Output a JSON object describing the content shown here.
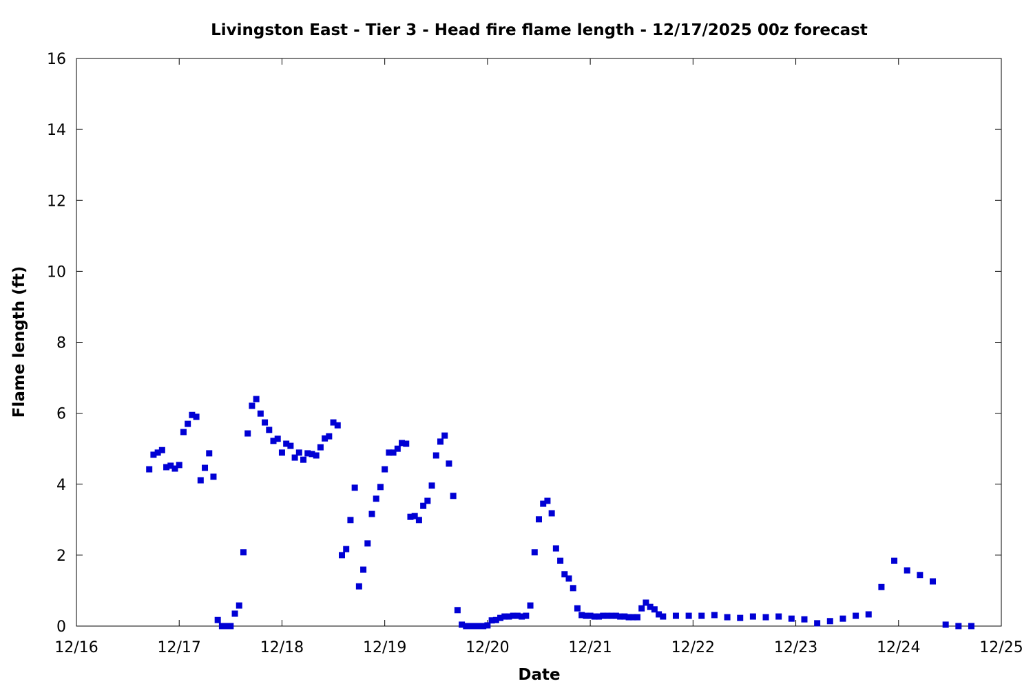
{
  "chart_data": {
    "type": "scatter",
    "title": "Livingston East - Tier 3 - Head fire flame length - 12/17/2025 00z forecast",
    "xlabel": "Date",
    "ylabel": "Flame length (ft)",
    "x_units": "hours since 12/16 00z",
    "xlim": [
      0,
      216
    ],
    "ylim": [
      0,
      16
    ],
    "xticks": [
      {
        "value": 0,
        "label": "12/16"
      },
      {
        "value": 24,
        "label": "12/17"
      },
      {
        "value": 48,
        "label": "12/18"
      },
      {
        "value": 72,
        "label": "12/19"
      },
      {
        "value": 96,
        "label": "12/20"
      },
      {
        "value": 120,
        "label": "12/21"
      },
      {
        "value": 144,
        "label": "12/22"
      },
      {
        "value": 168,
        "label": "12/23"
      },
      {
        "value": 192,
        "label": "12/24"
      },
      {
        "value": 216,
        "label": "12/25"
      }
    ],
    "yticks": [
      {
        "value": 0,
        "label": "0"
      },
      {
        "value": 2,
        "label": "2"
      },
      {
        "value": 4,
        "label": "4"
      },
      {
        "value": 6,
        "label": "6"
      },
      {
        "value": 8,
        "label": "8"
      },
      {
        "value": 10,
        "label": "10"
      },
      {
        "value": 12,
        "label": "12"
      },
      {
        "value": 14,
        "label": "14"
      },
      {
        "value": 16,
        "label": "16"
      }
    ],
    "grid": false,
    "color": "#0000d4",
    "series": [
      {
        "name": "Head fire flame length",
        "x": [
          17,
          18,
          19,
          20,
          21,
          22,
          23,
          24,
          25,
          26,
          27,
          28,
          29,
          30,
          31,
          32,
          33,
          34,
          35,
          36,
          37,
          38,
          39,
          40,
          41,
          42,
          43,
          44,
          45,
          46,
          47,
          48,
          49,
          50,
          51,
          52,
          53,
          54,
          55,
          56,
          57,
          58,
          59,
          60,
          61,
          62,
          63,
          64,
          65,
          66,
          67,
          68,
          69,
          70,
          71,
          72,
          73,
          74,
          75,
          76,
          77,
          78,
          79,
          80,
          81,
          82,
          83,
          84,
          85,
          86,
          87,
          88,
          89,
          90,
          91,
          92,
          93,
          94,
          95,
          96,
          97,
          98,
          99,
          100,
          101,
          102,
          103,
          104,
          105,
          106,
          107,
          108,
          109,
          110,
          111,
          112,
          113,
          114,
          115,
          116,
          117,
          118,
          119,
          120,
          121,
          122,
          123,
          124,
          125,
          126,
          127,
          128,
          129,
          130,
          131,
          132,
          133,
          134,
          135,
          136,
          137,
          140,
          143,
          146,
          149,
          152,
          155,
          158,
          161,
          164,
          167,
          170,
          173,
          176,
          179,
          182,
          185,
          188,
          191,
          194,
          197,
          200,
          203,
          206,
          209
        ],
        "y": [
          4.42,
          4.83,
          4.89,
          4.96,
          4.48,
          4.52,
          4.44,
          4.54,
          5.47,
          5.7,
          5.95,
          5.9,
          4.11,
          4.46,
          4.87,
          4.21,
          0.17,
          0,
          0,
          0,
          0.35,
          0.58,
          2.08,
          5.43,
          6.21,
          6.4,
          5.99,
          5.74,
          5.53,
          5.22,
          5.28,
          4.89,
          5.14,
          5.08,
          4.75,
          4.89,
          4.69,
          4.87,
          4.85,
          4.81,
          5.04,
          5.29,
          5.35,
          5.74,
          5.66,
          2.0,
          2.17,
          2.99,
          3.9,
          1.12,
          1.59,
          2.33,
          3.16,
          3.59,
          3.92,
          4.42,
          4.89,
          4.89,
          5.0,
          5.16,
          5.14,
          3.08,
          3.1,
          2.99,
          3.39,
          3.53,
          3.96,
          4.81,
          5.2,
          5.37,
          4.58,
          3.67,
          0.45,
          0.04,
          0,
          0,
          0,
          0,
          0,
          0.02,
          0.16,
          0.17,
          0.23,
          0.27,
          0.27,
          0.29,
          0.29,
          0.27,
          0.29,
          0.58,
          2.08,
          3.01,
          3.45,
          3.53,
          3.18,
          2.19,
          1.84,
          1.46,
          1.34,
          1.07,
          0.5,
          0.31,
          0.29,
          0.29,
          0.27,
          0.27,
          0.29,
          0.29,
          0.29,
          0.29,
          0.27,
          0.27,
          0.25,
          0.25,
          0.25,
          0.5,
          0.66,
          0.54,
          0.47,
          0.33,
          0.27,
          0.29,
          0.29,
          0.29,
          0.31,
          0.25,
          0.23,
          0.27,
          0.25,
          0.27,
          0.21,
          0.19,
          0.08,
          0.14,
          0.21,
          0.29,
          0.33,
          1.1,
          1.84,
          1.57,
          1.44,
          1.26,
          0.04,
          0,
          0
        ]
      }
    ]
  }
}
